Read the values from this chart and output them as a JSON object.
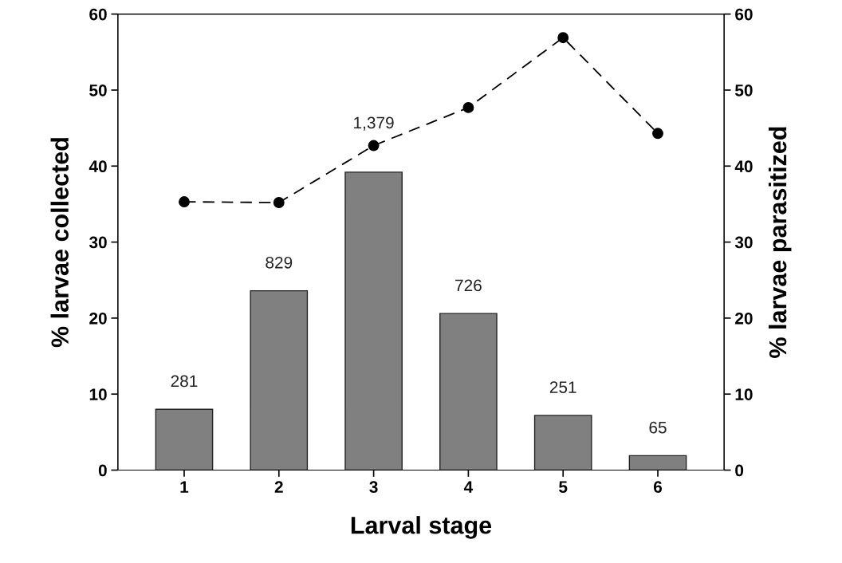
{
  "chart_data": {
    "type": "bar",
    "xlabel": "Larval stage",
    "ylabel": "% larvae collected",
    "y2label": "% larvae parasitized",
    "categories": [
      "1",
      "2",
      "3",
      "4",
      "5",
      "6"
    ],
    "series": [
      {
        "color": "#808080",
        "values": [
          8.0,
          23.6,
          39.2,
          20.6,
          7.2,
          1.9
        ]
      },
      {
        "type": "line",
        "axis": "y2",
        "color": "#000000",
        "marker": "circle",
        "line_style": "dashed",
        "values": [
          35.3,
          35.2,
          42.7,
          47.7,
          56.9,
          44.3
        ]
      }
    ],
    "annotations": [
      {
        "text": "281",
        "x": "1",
        "y": 8.0
      },
      {
        "text": "829",
        "x": "2",
        "y": 23.6
      },
      {
        "text": "1,379",
        "x": "3",
        "y": 39.2
      },
      {
        "text": "726",
        "x": "4",
        "y": 20.6
      },
      {
        "text": "251",
        "x": "5",
        "y": 7.2
      },
      {
        "text": "65",
        "x": "6",
        "y": 1.9
      }
    ],
    "ylim": [
      0,
      60
    ],
    "yticks": [
      0,
      10,
      20,
      30,
      40,
      50,
      60
    ],
    "y2lim": [
      0,
      60
    ],
    "y2ticks": [
      0,
      10,
      20,
      30,
      40,
      50,
      60
    ],
    "grid": false,
    "legend": false
  }
}
